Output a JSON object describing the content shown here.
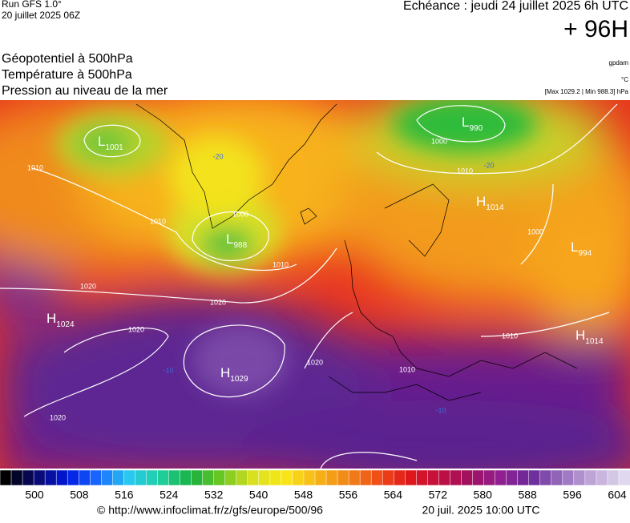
{
  "header": {
    "run": "Run GFS 1.0°",
    "run_date": "20 juillet 2025 06Z",
    "valid": "Echéance : jeudi 24 juillet 2025 6h UTC",
    "lead": "+ 96H"
  },
  "layers": [
    "Géopotentiel à 500hPa",
    "Température à 500hPa",
    "Pression au niveau de la mer"
  ],
  "units": [
    "gpdam",
    "°C",
    "[Max 1029.2 | Min 988.3] hPa"
  ],
  "centers": [
    {
      "kind": "L",
      "value": "1001"
    },
    {
      "kind": "L",
      "value": "990"
    },
    {
      "kind": "L",
      "value": "988"
    },
    {
      "kind": "H",
      "value": "1024"
    },
    {
      "kind": "H",
      "value": "1029"
    },
    {
      "kind": "L",
      "value": "994"
    },
    {
      "kind": "H",
      "value": "1014"
    },
    {
      "kind": "H",
      "value": "1014"
    }
  ],
  "contour_labels": [
    "1010",
    "1010",
    "1010",
    "1000",
    "1020",
    "1020",
    "1020",
    "1020",
    "1020",
    "1010",
    "1010",
    "1000",
    "1010",
    "1000",
    "-20",
    "-20",
    "-10",
    "-10"
  ],
  "scale_ticks": [
    500,
    508,
    516,
    524,
    532,
    540,
    548,
    556,
    564,
    572,
    580,
    588,
    596,
    604
  ],
  "footer": {
    "url": "© http://www.infoclimat.fr/z/gfs/europe/500/96",
    "date": "20 juil. 2025 10:00 UTC"
  }
}
